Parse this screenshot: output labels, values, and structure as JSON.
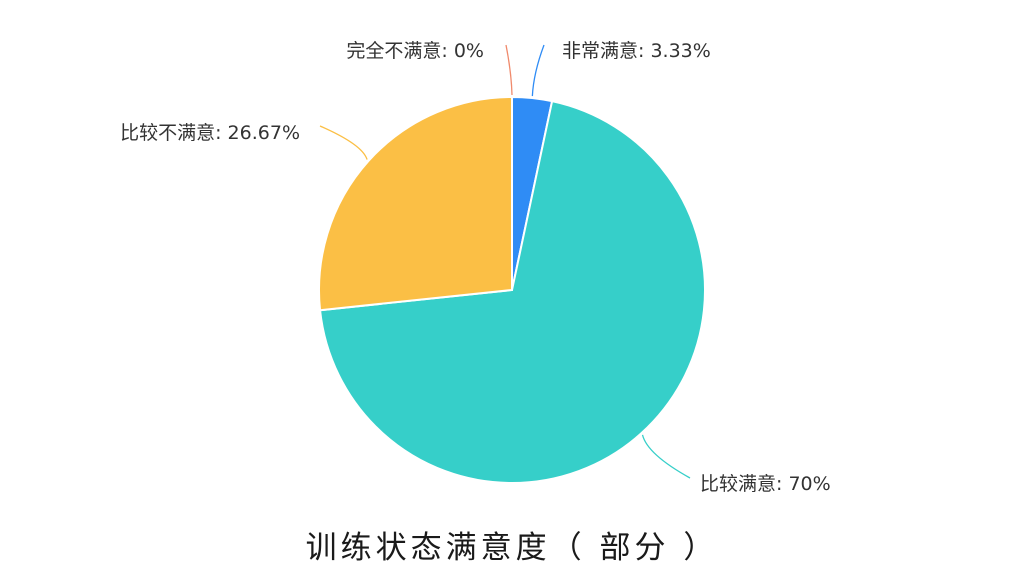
{
  "chart_data": {
    "type": "pie",
    "title": "训练状态满意度（部分）",
    "slices": [
      {
        "name": "非常满意",
        "value": 3.33,
        "label": "非常满意: 3.33%",
        "color": "#2f8cf5"
      },
      {
        "name": "比较满意",
        "value": 70,
        "label": "比较满意: 70%",
        "color": "#36cfc9"
      },
      {
        "name": "比较不满意",
        "value": 26.67,
        "label": "比较不满意: 26.67%",
        "color": "#fbbf45"
      },
      {
        "name": "完全不满意",
        "value": 0,
        "label": "完全不满意: 0%",
        "color": "#f08a6c"
      }
    ],
    "start_angle": "12 o'clock",
    "direction": "clockwise",
    "legend": "none"
  },
  "caption": "训练状态满意度（ 部分 ）"
}
